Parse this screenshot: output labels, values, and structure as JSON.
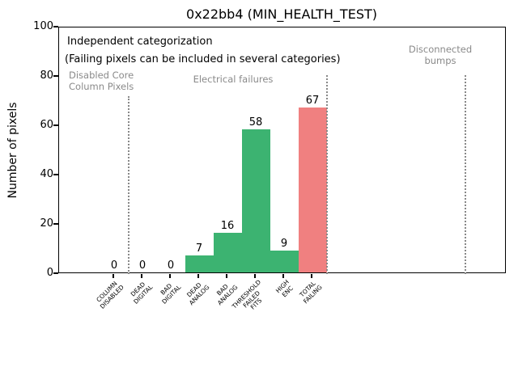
{
  "chart_data": {
    "type": "bar",
    "title": "0x22bb4 (MIN_HEALTH_TEST)",
    "xlabel": "",
    "ylabel": "Number of pixels",
    "ylim": [
      0,
      100
    ],
    "yticks": [
      0,
      20,
      40,
      60,
      80,
      100
    ],
    "grid": false,
    "categories": [
      "COLUMN\nDISABLED",
      "DEAD\nDIGITAL",
      "BAD\nDIGITAL",
      "DEAD\nANALOG",
      "BAD\nANALOG",
      "THRESHOLD\nFAILED\nFITS",
      "HIGH\nENC",
      "TOTAL\nFAILING"
    ],
    "values": [
      0,
      0,
      0,
      7,
      16,
      58,
      9,
      67
    ],
    "bar_labels": [
      "0",
      "0",
      "0",
      "7",
      "16",
      "58",
      "9",
      "67"
    ],
    "bar_colors": [
      "#3cb371",
      "#3cb371",
      "#3cb371",
      "#3cb371",
      "#3cb371",
      "#3cb371",
      "#3cb371",
      "#f08080"
    ],
    "annotations": {
      "note_line1": "Independent categorization",
      "note_line2": "(Failing pixels can be included in several categories)",
      "sections": [
        {
          "label": "Disabled Core\nColumn Pixels"
        },
        {
          "label": "Electrical failures"
        },
        {
          "label": "Disconnected\nbumps"
        }
      ],
      "separator_x": [
        0.5,
        7.5,
        12.4
      ]
    },
    "colors": {
      "bar_green": "#3cb371",
      "bar_red": "#f08080",
      "section_text": "#8a8a8a",
      "separator_line": "#888888"
    }
  }
}
